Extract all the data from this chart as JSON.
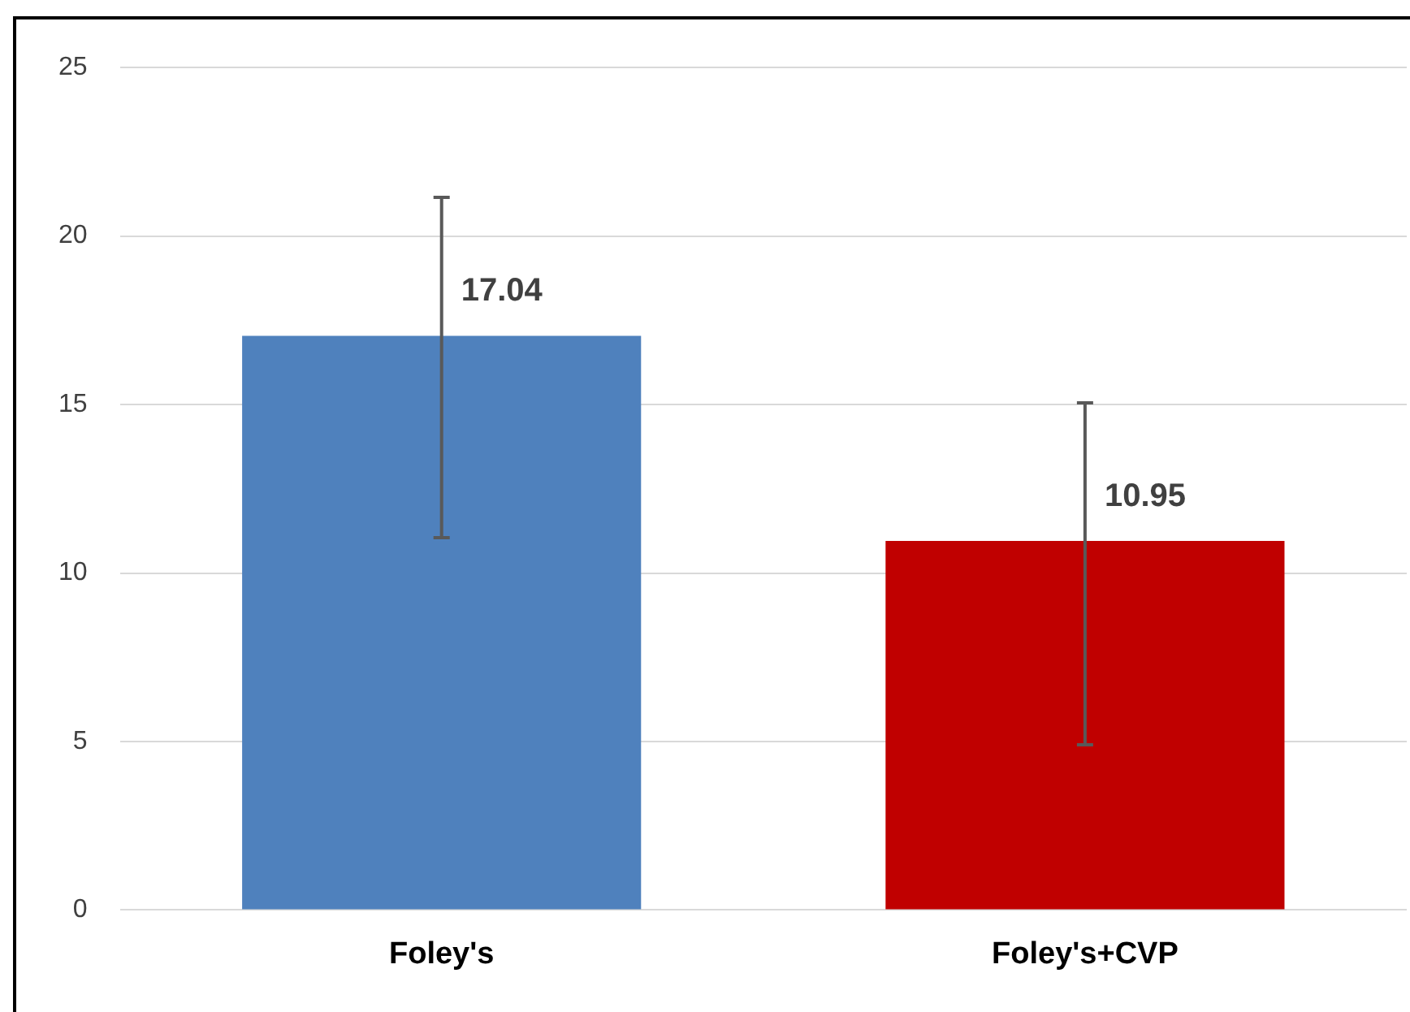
{
  "chart_data": {
    "type": "bar",
    "categories": [
      "Foley's",
      "Foley's+CVP"
    ],
    "values": [
      17.04,
      10.95
    ],
    "colors": [
      "#4f81bd",
      "#c00000"
    ],
    "errors": [
      [
        11.05,
        21.15
      ],
      [
        4.9,
        15.05
      ]
    ],
    "ylim": [
      0,
      25
    ],
    "yticks": [
      0,
      5,
      10,
      15,
      20,
      25
    ],
    "grid": "y",
    "data_labels": true
  }
}
